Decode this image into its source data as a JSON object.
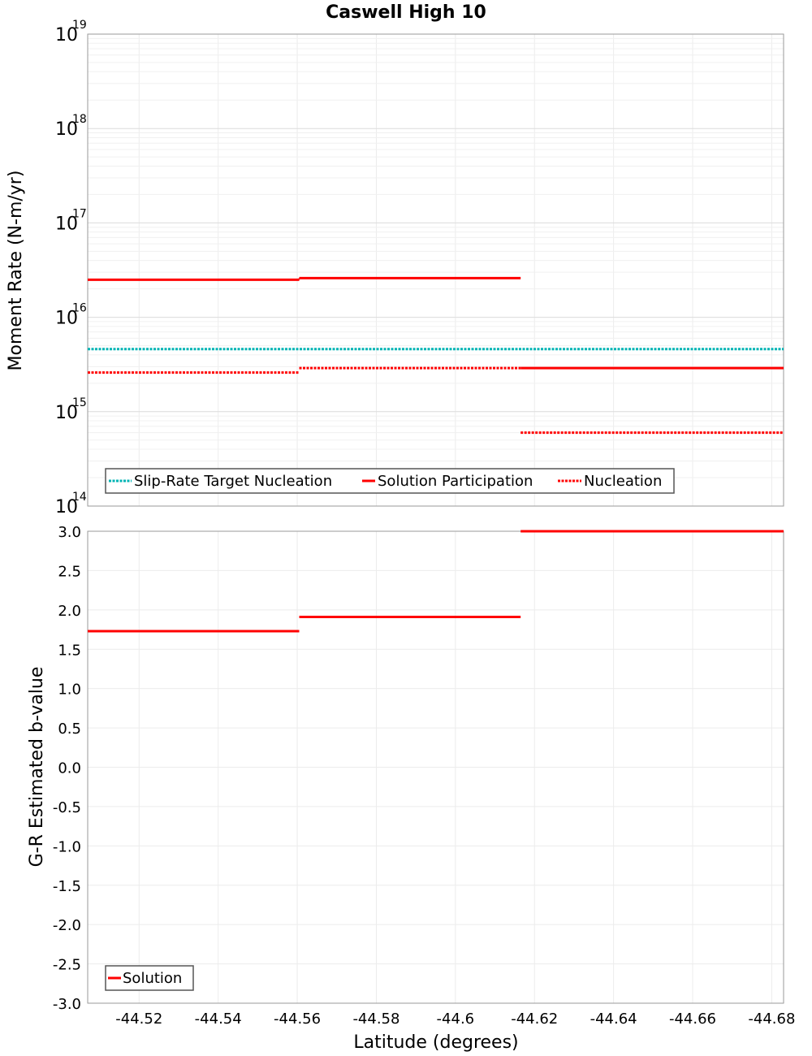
{
  "chart_data": {
    "title": "Caswell High 10",
    "xlabel": "Latitude (degrees)",
    "xlim": [
      -44.507,
      -44.683
    ],
    "x_ticks": [
      {
        "value": -44.52,
        "label": "-44.52"
      },
      {
        "value": -44.54,
        "label": "-44.54"
      },
      {
        "value": -44.56,
        "label": "-44.56"
      },
      {
        "value": -44.58,
        "label": "-44.58"
      },
      {
        "value": -44.6,
        "label": "-44.6"
      },
      {
        "value": -44.62,
        "label": "-44.62"
      },
      {
        "value": -44.64,
        "label": "-44.64"
      },
      {
        "value": -44.66,
        "label": "-44.66"
      },
      {
        "value": -44.68,
        "label": "-44.68"
      }
    ],
    "top": {
      "type": "line",
      "scale": "log",
      "ylabel": "Moment Rate (N-m/yr)",
      "ylim": [
        100000000000000.0,
        1e+19
      ],
      "y_ticks": [
        {
          "value": 100000000000000.0,
          "base": "10",
          "exp": "14"
        },
        {
          "value": 1000000000000000.0,
          "base": "10",
          "exp": "15"
        },
        {
          "value": 1e+16,
          "base": "10",
          "exp": "16"
        },
        {
          "value": 1e+17,
          "base": "10",
          "exp": "17"
        },
        {
          "value": 1e+18,
          "base": "10",
          "exp": "18"
        },
        {
          "value": 1e+19,
          "base": "10",
          "exp": "19"
        }
      ],
      "legend": "bottom-left",
      "series": [
        {
          "name": "Slip-Rate Target Nucleation",
          "color": "#00b4b4",
          "style": "dotted",
          "segments": [
            {
              "x0": -44.507,
              "x1": -44.683,
              "y": 4600000000000000.0
            }
          ]
        },
        {
          "name": "Solution Participation",
          "color": "#ff0000",
          "style": "solid",
          "segments": [
            {
              "x0": -44.507,
              "x1": -44.5605,
              "y": 2.5e+16
            },
            {
              "x0": -44.5605,
              "x1": -44.6165,
              "y": 2.6e+16
            },
            {
              "x0": -44.6165,
              "x1": -44.683,
              "y": 2900000000000000.0
            }
          ]
        },
        {
          "name": "Nucleation",
          "color": "#ff0000",
          "style": "dotted",
          "segments": [
            {
              "x0": -44.507,
              "x1": -44.5605,
              "y": 2600000000000000.0
            },
            {
              "x0": -44.5605,
              "x1": -44.6165,
              "y": 2900000000000000.0
            },
            {
              "x0": -44.6165,
              "x1": -44.683,
              "y": 600000000000000.0
            }
          ]
        }
      ]
    },
    "bottom": {
      "type": "line",
      "scale": "linear",
      "ylabel": "G-R Estimated b-value",
      "ylim": [
        -3.0,
        3.0
      ],
      "y_ticks": [
        "-3.0",
        "-2.5",
        "-2.0",
        "-1.5",
        "-1.0",
        "-0.5",
        "0.0",
        "0.5",
        "1.0",
        "1.5",
        "2.0",
        "2.5",
        "3.0"
      ],
      "legend": "bottom-left",
      "series": [
        {
          "name": "Solution",
          "color": "#ff0000",
          "style": "solid",
          "segments": [
            {
              "x0": -44.507,
              "x1": -44.5605,
              "y": 1.73
            },
            {
              "x0": -44.5605,
              "x1": -44.6165,
              "y": 1.91
            },
            {
              "x0": -44.6165,
              "x1": -44.683,
              "y": 3.0
            }
          ]
        }
      ]
    }
  }
}
